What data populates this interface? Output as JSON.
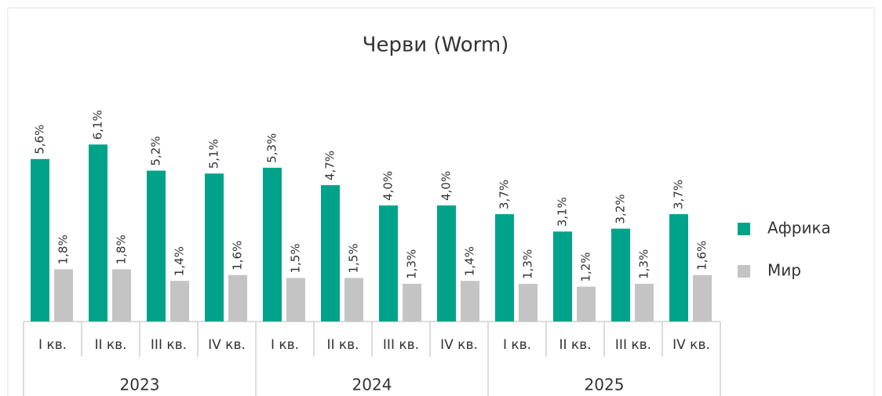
{
  "chart_data": {
    "type": "bar",
    "title": "Черви (Worm)",
    "categories": [
      "I кв.",
      "II кв.",
      "III кв.",
      "IV кв.",
      "I кв.",
      "II кв.",
      "III кв.",
      "IV кв.",
      "I кв.",
      "II кв.",
      "III кв.",
      "IV кв."
    ],
    "groups": [
      "2023",
      "2024",
      "2025"
    ],
    "series": [
      {
        "name": "Африка",
        "color": "#00a389",
        "values": [
          5.6,
          6.1,
          5.2,
          5.1,
          5.3,
          4.7,
          4.0,
          4.0,
          3.7,
          3.1,
          3.2,
          3.7
        ],
        "value_labels": [
          "5,6%",
          "6,1%",
          "5,2%",
          "5,1%",
          "5,3%",
          "4,7%",
          "4,0%",
          "4,0%",
          "3,7%",
          "3,1%",
          "3,2%",
          "3,7%"
        ]
      },
      {
        "name": "Мир",
        "color": "#c4c4c4",
        "values": [
          1.8,
          1.8,
          1.4,
          1.6,
          1.5,
          1.5,
          1.3,
          1.4,
          1.3,
          1.2,
          1.3,
          1.6
        ],
        "value_labels": [
          "1,8%",
          "1,8%",
          "1,4%",
          "1,6%",
          "1,5%",
          "1,5%",
          "1,3%",
          "1,4%",
          "1,3%",
          "1,2%",
          "1,3%",
          "1,6%"
        ]
      }
    ],
    "ylim": [
      0,
      7
    ],
    "legend": "right"
  }
}
